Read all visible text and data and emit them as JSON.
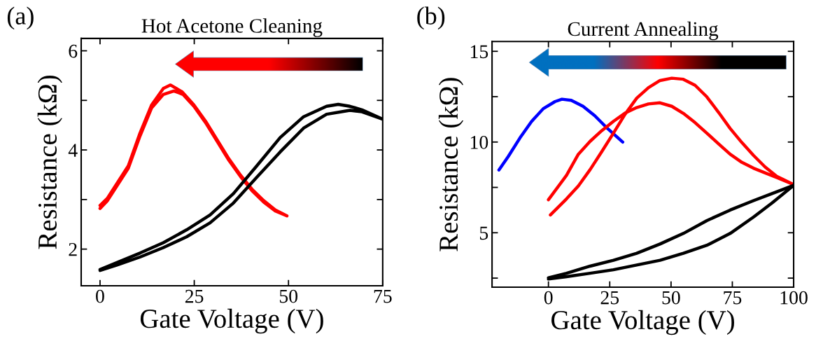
{
  "chart_data": [
    {
      "type": "line",
      "title": "Hot Acetone Cleaning",
      "xlabel": "Gate Voltage (V)",
      "ylabel": "Resistance (kΩ)",
      "annotations": [
        "(a)"
      ],
      "xlim": [
        -5,
        75
      ],
      "xticks": [
        0,
        25,
        50,
        75
      ],
      "ylim": [
        1.26,
        6.25
      ],
      "yticks": [
        2,
        {
          "value": 3,
          "label": null
        },
        4,
        {
          "value": 5,
          "label": null
        },
        6
      ],
      "grid": false,
      "legend": false,
      "marker": "none",
      "line_style": "solid",
      "series": [
        {
          "color": "#ff0000",
          "x": [
            0,
            1.9,
            7.5,
            10.6,
            13.7,
            16.8,
            18.7,
            21.8,
            24.9,
            28,
            31.1,
            34.2,
            37.3,
            40.3,
            43.4,
            46.5,
            49.6,
            46.5,
            43.4,
            40.3,
            37.3,
            34.2,
            31.1,
            28,
            24.9,
            22,
            19.6,
            16.8,
            13.7,
            10.6,
            7.5,
            1.9,
            0
          ],
          "values": [
            2.88,
            3.02,
            3.68,
            4.34,
            4.91,
            5.24,
            5.31,
            5.17,
            4.91,
            4.58,
            4.2,
            3.82,
            3.49,
            3.21,
            2.98,
            2.79,
            2.67,
            2.77,
            2.95,
            3.18,
            3.46,
            3.79,
            4.17,
            4.55,
            4.88,
            5.12,
            5.19,
            5.12,
            4.85,
            4.28,
            3.63,
            2.97,
            2.82
          ]
        },
        {
          "color": "#000000",
          "x": [
            0,
            4.5,
            10.6,
            16.8,
            23.0,
            29.2,
            35.4,
            41.6,
            47.8,
            54,
            60.1,
            63.2,
            66.3,
            69.5,
            75,
            69.5,
            66.3,
            60.1,
            54,
            47.8,
            41.6,
            35.4,
            29.2,
            23.0,
            16.8,
            10.6,
            4.5,
            0
          ],
          "values": [
            1.59,
            1.73,
            1.92,
            2.13,
            2.39,
            2.69,
            3.12,
            3.68,
            4.25,
            4.67,
            4.88,
            4.92,
            4.88,
            4.81,
            4.62,
            4.77,
            4.8,
            4.72,
            4.44,
            3.96,
            3.45,
            2.93,
            2.53,
            2.25,
            2.03,
            1.84,
            1.68,
            1.57
          ]
        }
      ]
    },
    {
      "type": "line",
      "title": "Current Annealing",
      "xlabel": "Gate Voltage (V)",
      "ylabel": "Resistance (kΩ)",
      "annotations": [
        "(b)"
      ],
      "xlim": [
        -23,
        100
      ],
      "xticks": [
        0,
        25,
        50,
        75,
        100
      ],
      "ylim": [
        2.0,
        15.54
      ],
      "yticks": [
        {
          "value": 2.5,
          "label": null
        },
        5,
        {
          "value": 7.5,
          "label": null
        },
        10,
        {
          "value": 12.5,
          "label": null
        },
        15
      ],
      "grid": false,
      "legend": false,
      "marker": "none",
      "line_style": "solid",
      "series": [
        {
          "color": "#0000ff",
          "x": [
            -20.2,
            -16.4,
            -11.6,
            -6.9,
            -2.1,
            2.7,
            5.5,
            9.3,
            14.1,
            18.9,
            23.6,
            30.3
          ],
          "values": [
            8.46,
            9.2,
            10.23,
            11.13,
            11.84,
            12.23,
            12.36,
            12.3,
            11.97,
            11.45,
            10.81,
            10.0
          ]
        },
        {
          "color": "#ff0000",
          "x": [
            0,
            7.4,
            12.2,
            17,
            21.7,
            26.5,
            31.2,
            36,
            40.8,
            45.5,
            50.3,
            55,
            59.8,
            64.6,
            69.3,
            74.1,
            78.9,
            83.6,
            88.4,
            93.1,
            100,
            93.1,
            88.4,
            83.6,
            78.9,
            74.1,
            69.3,
            64.6,
            59.8,
            55,
            50.3,
            45.5,
            40.8,
            36,
            31.2,
            26.5,
            21.7,
            17,
            12.2,
            7.4,
            0.8
          ],
          "values": [
            6.82,
            8.17,
            9.33,
            10.04,
            10.62,
            11.14,
            11.59,
            11.9,
            12.1,
            12.16,
            11.97,
            11.58,
            11.07,
            10.49,
            9.91,
            9.33,
            8.88,
            8.56,
            8.3,
            8.04,
            7.66,
            8.11,
            8.62,
            9.27,
            9.97,
            10.75,
            11.65,
            12.49,
            13.13,
            13.46,
            13.52,
            13.39,
            13.0,
            12.42,
            11.52,
            10.49,
            9.46,
            8.48,
            7.58,
            6.87,
            5.98
          ]
        },
        {
          "color": "#000000",
          "x": [
            0,
            7.4,
            17,
            26.5,
            36,
            45.5,
            55,
            64.6,
            74.1,
            83.6,
            91.2,
            100,
            91.2,
            83.6,
            74.1,
            64.6,
            55,
            45.5,
            36,
            26.5,
            17,
            7.4,
            0
          ],
          "values": [
            2.52,
            2.77,
            3.16,
            3.48,
            3.87,
            4.38,
            4.96,
            5.67,
            6.25,
            6.77,
            7.16,
            7.61,
            6.64,
            5.86,
            4.96,
            4.31,
            3.87,
            3.48,
            3.22,
            2.96,
            2.77,
            2.58,
            2.45
          ]
        }
      ]
    }
  ]
}
